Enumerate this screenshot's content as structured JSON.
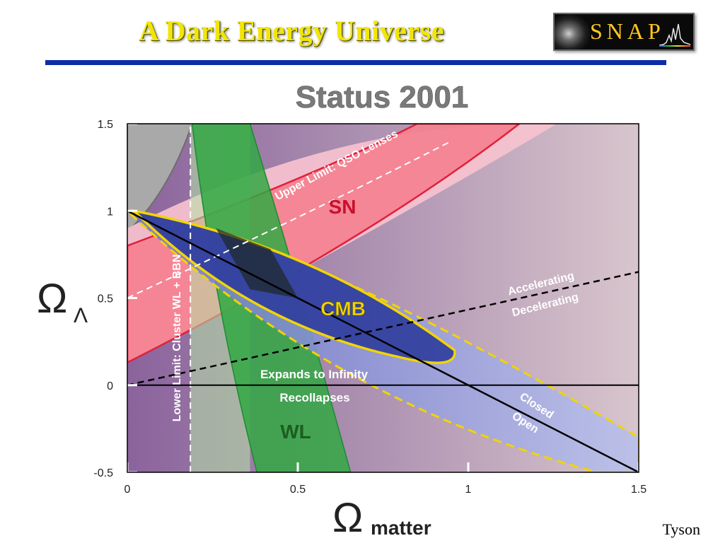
{
  "slide": {
    "title": "A Dark Energy Universe",
    "logo_text": "SNAP",
    "credit": "Tyson"
  },
  "chart_data": {
    "type": "contour",
    "title": "Status 2001",
    "xlabel_symbol": "Ω",
    "xlabel_sub": "matter",
    "ylabel_symbol": "Ω",
    "ylabel_sub": "Λ",
    "xlim": [
      0,
      1.5
    ],
    "ylim": [
      -0.5,
      1.5
    ],
    "xticks": [
      {
        "value": 0,
        "label": "0"
      },
      {
        "value": 0.5,
        "label": "0.5"
      },
      {
        "value": 1,
        "label": "1"
      },
      {
        "value": 1.5,
        "label": "1.5"
      }
    ],
    "yticks": [
      {
        "value": -0.5,
        "label": "-0.5"
      },
      {
        "value": 0,
        "label": "0"
      },
      {
        "value": 0.5,
        "label": "0.5"
      },
      {
        "value": 1,
        "label": "1"
      },
      {
        "value": 1.5,
        "label": "1.5"
      }
    ],
    "regions": [
      {
        "name": "SN",
        "color": "#ff6c7c",
        "boundary": [
          [
            0,
            0.13
          ],
          [
            0.65,
            0.7
          ],
          [
            1.15,
            1.5
          ],
          [
            0.85,
            1.5
          ],
          [
            0,
            0.8
          ]
        ]
      },
      {
        "name": "WL",
        "color": "#35a844",
        "boundary": [
          [
            0.19,
            1.5
          ],
          [
            0.36,
            1.5
          ],
          [
            0.47,
            0.5
          ],
          [
            0.65,
            -0.5
          ],
          [
            0.38,
            -0.5
          ],
          [
            0.3,
            0.5
          ]
        ]
      },
      {
        "name": "CMB",
        "color": "#2d3a9a",
        "boundary": [
          [
            0,
            1.0
          ],
          [
            0.3,
            0.95
          ],
          [
            0.95,
            0.18
          ],
          [
            0.85,
            0.14
          ],
          [
            0.2,
            0.68
          ]
        ]
      }
    ],
    "lines": [
      {
        "label": "Upper Limit: QSO Lenses",
        "color": "#ffffff",
        "style": "dashed",
        "points": [
          [
            0,
            0.5
          ],
          [
            0.6,
            1.0
          ],
          [
            0.95,
            1.38
          ]
        ]
      },
      {
        "label": "Lower Limit: Cluster WL + BBN",
        "color": "#ffffff",
        "style": "dashed",
        "points": [
          [
            0.185,
            -0.5
          ],
          [
            0.185,
            1.5
          ]
        ]
      },
      {
        "label_above": "Accelerating",
        "label_below": "Decelerating",
        "color": "#000000",
        "style": "dashed",
        "points": [
          [
            0,
            0
          ],
          [
            1.5,
            0.65
          ]
        ]
      },
      {
        "label_above": "Expands to Infinity",
        "label_below": "Recollapses",
        "color": "#000000",
        "style": "solid",
        "points": [
          [
            0,
            0
          ],
          [
            1.5,
            0
          ]
        ]
      },
      {
        "label_above": "Closed",
        "label_below": "Open",
        "color": "#000000",
        "style": "solid",
        "points": [
          [
            0,
            1
          ],
          [
            1.5,
            -0.5
          ]
        ]
      }
    ]
  }
}
